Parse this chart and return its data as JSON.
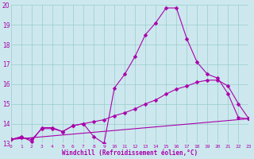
{
  "bg_color": "#cce8ee",
  "line_color": "#aa00aa",
  "grid_color": "#99cccc",
  "xlabel": "Windchill (Refroidissement éolien,°C)",
  "xlabel_color": "#aa00aa",
  "ylim": [
    13,
    20
  ],
  "xlim": [
    0,
    23
  ],
  "yticks": [
    13,
    14,
    15,
    16,
    17,
    18,
    19,
    20
  ],
  "xticks": [
    0,
    1,
    2,
    3,
    4,
    5,
    6,
    7,
    8,
    9,
    10,
    11,
    12,
    13,
    14,
    15,
    16,
    17,
    18,
    19,
    20,
    21,
    22,
    23
  ],
  "series": [
    {
      "x": [
        0,
        1,
        2,
        3,
        4,
        5,
        6,
        7,
        8,
        9,
        10,
        11,
        12,
        13,
        14,
        15,
        16,
        17,
        18,
        19,
        20,
        21,
        22,
        23
      ],
      "y": [
        13.2,
        13.35,
        13.1,
        13.8,
        13.8,
        13.6,
        13.9,
        14.0,
        13.35,
        13.0,
        15.8,
        16.5,
        17.4,
        18.5,
        19.1,
        19.85,
        19.85,
        18.3,
        17.1,
        16.5,
        16.3,
        15.5,
        14.3,
        14.25
      ]
    },
    {
      "x": [
        0,
        1,
        2,
        3,
        4,
        5,
        6,
        7,
        8,
        9,
        10,
        11,
        12,
        13,
        14,
        15,
        16,
        17,
        18,
        19,
        20,
        21,
        22,
        23
      ],
      "y": [
        13.2,
        13.3,
        13.2,
        13.75,
        13.75,
        13.6,
        13.9,
        14.0,
        14.1,
        14.2,
        14.4,
        14.55,
        14.75,
        15.0,
        15.2,
        15.5,
        15.75,
        15.9,
        16.1,
        16.2,
        16.2,
        15.9,
        15.0,
        14.25
      ]
    },
    {
      "x": [
        0,
        23
      ],
      "y": [
        13.2,
        14.25
      ]
    }
  ]
}
